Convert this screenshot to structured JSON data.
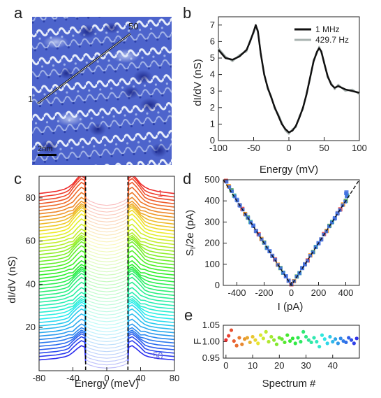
{
  "panels": {
    "a": {
      "letter": "a",
      "scalebar": "2nm",
      "line_start_label": "1",
      "line_end_label": "50",
      "colors": {
        "dark": "#1f2f9a",
        "light": "#e8f0f8",
        "mid": "#6f86d8"
      }
    },
    "b": {
      "letter": "b"
    },
    "c": {
      "letter": "c",
      "spectrum_first_label": "1",
      "spectrum_last_label": "50"
    },
    "d": {
      "letter": "d"
    },
    "e": {
      "letter": "e"
    }
  },
  "chart_data": [
    {
      "id": "b",
      "type": "line",
      "xlabel": "Energy (mV)",
      "ylabel": "dI/dV (nS)",
      "xlim": [
        -100,
        100
      ],
      "ylim": [
        0,
        7.5
      ],
      "xticks": [
        -100,
        -50,
        0,
        50,
        100
      ],
      "yticks": [
        0,
        1,
        2,
        3,
        4,
        5,
        6,
        7
      ],
      "legend_position": "top-right",
      "series": [
        {
          "name": "1 MHz",
          "color": "#111111",
          "x": [
            -100,
            -90,
            -80,
            -70,
            -60,
            -55,
            -50,
            -47,
            -44,
            -40,
            -35,
            -30,
            -25,
            -20,
            -15,
            -10,
            -5,
            0,
            5,
            10,
            15,
            20,
            25,
            30,
            35,
            40,
            43,
            46,
            50,
            55,
            60,
            65,
            70,
            80,
            90,
            100
          ],
          "y": [
            5.5,
            5.0,
            4.9,
            5.1,
            5.5,
            6.0,
            6.6,
            7.0,
            6.6,
            5.3,
            4.0,
            3.2,
            2.6,
            2.0,
            1.5,
            1.0,
            0.7,
            0.5,
            0.6,
            0.9,
            1.4,
            2.0,
            2.8,
            3.8,
            4.8,
            5.4,
            5.6,
            5.4,
            4.7,
            3.9,
            3.4,
            3.2,
            3.3,
            3.1,
            3.0,
            2.9
          ]
        },
        {
          "name": "429.7 Hz",
          "color": "#a9b3b0",
          "x": [
            -100,
            -90,
            -80,
            -70,
            -60,
            -55,
            -50,
            -47,
            -44,
            -40,
            -35,
            -30,
            -25,
            -20,
            -15,
            -10,
            -5,
            0,
            5,
            10,
            15,
            20,
            25,
            30,
            35,
            40,
            43,
            46,
            50,
            55,
            60,
            65,
            70,
            80,
            90,
            100
          ],
          "y": [
            5.6,
            5.1,
            4.8,
            5.2,
            5.4,
            6.1,
            6.5,
            6.9,
            6.7,
            5.2,
            4.1,
            3.1,
            2.7,
            1.9,
            1.6,
            1.1,
            0.6,
            0.4,
            0.7,
            0.8,
            1.5,
            1.9,
            2.9,
            3.7,
            4.9,
            5.3,
            5.7,
            5.3,
            4.8,
            3.8,
            3.5,
            3.1,
            3.4,
            3.0,
            3.1,
            2.8
          ]
        }
      ]
    },
    {
      "id": "c",
      "type": "line",
      "xlabel": "Energy (meV)",
      "ylabel": "dI/dV (nS)",
      "xlim": [
        -80,
        80
      ],
      "ylim": [
        0,
        90
      ],
      "xticks": [
        -80,
        -40,
        0,
        40,
        80
      ],
      "yticks": [
        20,
        40,
        60,
        80
      ],
      "dashed_lines_x": [
        -25,
        25
      ],
      "spectrum_count": 50,
      "offset_top": 82,
      "offset_bottom": 5,
      "profile": {
        "x": [
          -80,
          -70,
          -60,
          -50,
          -45,
          -40,
          -35,
          -30,
          -26,
          -25,
          -20,
          -10,
          0,
          10,
          20,
          25,
          26,
          30,
          35,
          40,
          45,
          50,
          60,
          70,
          80
        ],
        "y": [
          0,
          0.5,
          1.0,
          2.0,
          3.0,
          4.5,
          7.0,
          9.0,
          8.0,
          -2.0,
          -3.5,
          -5.0,
          -5.5,
          -5.0,
          -3.5,
          -2.0,
          8.0,
          9.0,
          7.0,
          4.5,
          3.0,
          2.0,
          1.0,
          0.5,
          0
        ]
      }
    },
    {
      "id": "d",
      "type": "scatter",
      "xlabel": "I (pA)",
      "ylabel": "S_I/2e (pA)",
      "xlim": [
        -500,
        500
      ],
      "ylim": [
        0,
        500
      ],
      "xticks": [
        -400,
        -200,
        0,
        200,
        400
      ],
      "yticks": [
        0,
        100,
        200,
        300,
        400,
        500
      ],
      "fit_line": "y = |x|",
      "points": [
        [
          -480,
          495
        ],
        [
          -460,
          470
        ],
        [
          -440,
          450
        ],
        [
          -420,
          425
        ],
        [
          -400,
          405
        ],
        [
          -380,
          380
        ],
        [
          -360,
          362
        ],
        [
          -340,
          338
        ],
        [
          -320,
          322
        ],
        [
          -300,
          300
        ],
        [
          -280,
          283
        ],
        [
          -260,
          258
        ],
        [
          -240,
          242
        ],
        [
          -220,
          220
        ],
        [
          -200,
          203
        ],
        [
          -180,
          178
        ],
        [
          -160,
          162
        ],
        [
          -140,
          140
        ],
        [
          -120,
          123
        ],
        [
          -100,
          98
        ],
        [
          -80,
          82
        ],
        [
          -60,
          60
        ],
        [
          -40,
          43
        ],
        [
          -20,
          22
        ],
        [
          0,
          5
        ],
        [
          20,
          20
        ],
        [
          40,
          42
        ],
        [
          60,
          58
        ],
        [
          80,
          82
        ],
        [
          100,
          100
        ],
        [
          120,
          118
        ],
        [
          140,
          142
        ],
        [
          160,
          158
        ],
        [
          180,
          182
        ],
        [
          200,
          200
        ],
        [
          220,
          218
        ],
        [
          240,
          243
        ],
        [
          260,
          258
        ],
        [
          280,
          282
        ],
        [
          300,
          300
        ],
        [
          320,
          318
        ],
        [
          340,
          342
        ],
        [
          360,
          360
        ],
        [
          380,
          383
        ],
        [
          400,
          400
        ],
        [
          410,
          425
        ],
        [
          405,
          440
        ]
      ]
    },
    {
      "id": "e",
      "type": "scatter",
      "xlabel": "Spectrum #",
      "ylabel": "F",
      "xlim": [
        -1,
        50
      ],
      "ylim": [
        0.95,
        1.05
      ],
      "xticks": [
        0,
        10,
        20,
        30,
        40
      ],
      "yticks": [
        0.95,
        1.0,
        1.05
      ],
      "x": [
        0,
        1,
        2,
        3,
        4,
        5,
        6,
        7,
        8,
        9,
        10,
        11,
        12,
        13,
        14,
        15,
        16,
        17,
        18,
        19,
        20,
        21,
        22,
        23,
        24,
        25,
        26,
        27,
        28,
        29,
        30,
        31,
        32,
        33,
        34,
        35,
        36,
        37,
        38,
        39,
        40,
        41,
        42,
        43,
        44,
        45,
        46,
        47,
        48,
        49
      ],
      "y": [
        1.005,
        1.018,
        1.035,
        1.002,
        0.988,
        1.012,
        0.992,
        1.008,
        1.012,
        0.998,
        1.015,
        1.005,
        0.995,
        1.02,
        1.01,
        1.03,
        1.0,
        1.015,
        1.005,
        0.992,
        1.012,
        1.008,
        0.998,
        1.02,
        1.002,
        1.01,
        0.995,
        1.012,
        1.0,
        1.03,
        1.015,
        1.005,
        0.998,
        1.012,
        1.0,
        0.985,
        1.02,
        1.008,
        0.995,
        1.015,
        1.0,
        1.008,
        0.995,
        1.01,
        1.002,
        0.998,
        1.012,
        1.005,
        0.995,
        1.01
      ]
    }
  ]
}
